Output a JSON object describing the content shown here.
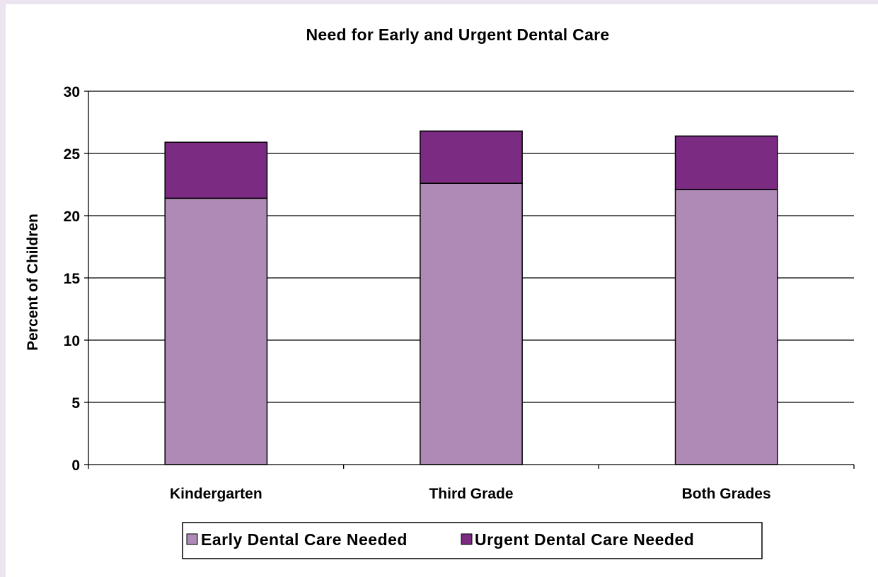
{
  "chart_data": {
    "type": "bar",
    "stacked": true,
    "title": "Need for Early and Urgent Dental Care",
    "xlabel": "",
    "ylabel": "Percent of Children",
    "ylim": [
      0,
      30
    ],
    "yticks": [
      "0",
      "5",
      "10",
      "15",
      "20",
      "25",
      "30"
    ],
    "categories": [
      "Kindergarten",
      "Third Grade",
      "Both Grades"
    ],
    "series": [
      {
        "name": "Early Dental Care Needed",
        "values": [
          21.4,
          22.6,
          22.1
        ],
        "color": "#b08ab6"
      },
      {
        "name": "Urgent Dental Care Needed",
        "values": [
          4.5,
          4.2,
          4.3
        ],
        "color": "#7b2b82"
      }
    ],
    "grid": true,
    "legend_position": "bottom"
  }
}
